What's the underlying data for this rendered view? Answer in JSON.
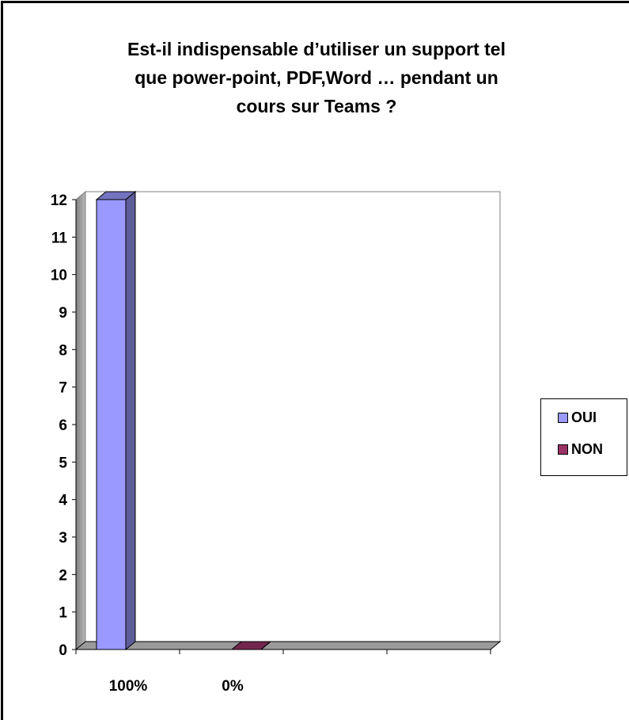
{
  "chart_data": {
    "type": "bar",
    "title": "Est-il  indispensable d’utiliser un support tel\nque power-point, PDF,Word …   pendant un\ncours sur Teams ?",
    "categories": [
      "100%",
      "0%",
      "",
      ""
    ],
    "series": [
      {
        "name": "OUI",
        "values": [
          12,
          null,
          null,
          null
        ],
        "color": "#9999ff"
      },
      {
        "name": "NON",
        "values": [
          null,
          0,
          null,
          null
        ],
        "color": "#993366"
      }
    ],
    "ylim": [
      0,
      12
    ],
    "yticks": [
      0,
      1,
      2,
      3,
      4,
      5,
      6,
      7,
      8,
      9,
      10,
      11,
      12
    ],
    "grid": false,
    "legend_position": "right",
    "style": "3d-column"
  }
}
